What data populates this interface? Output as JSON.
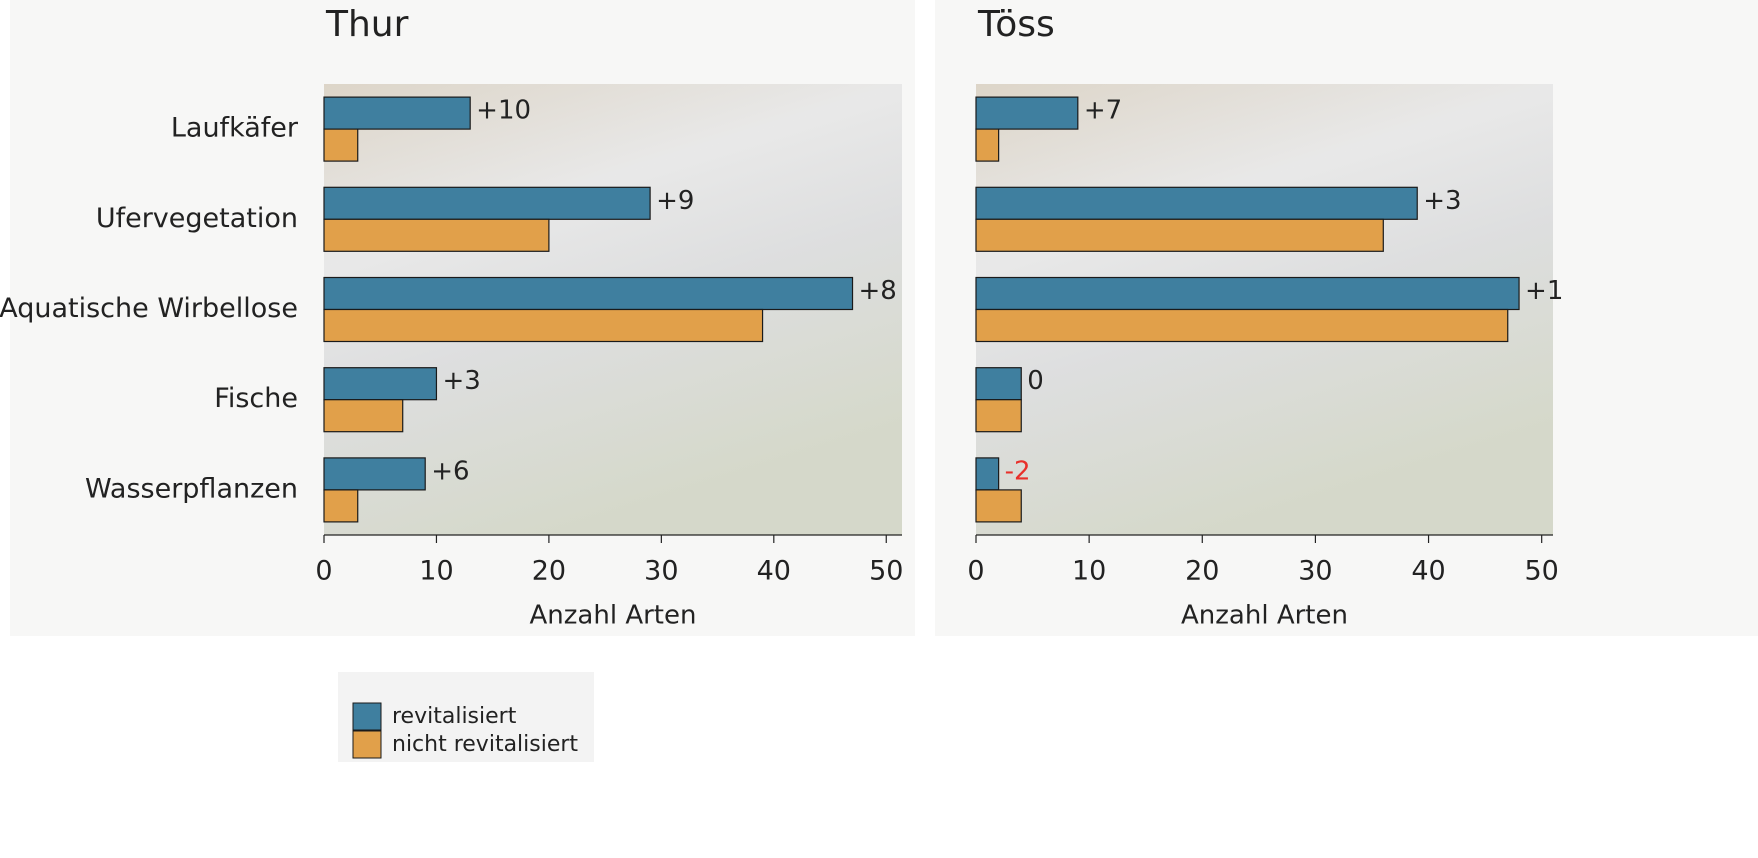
{
  "chart_data": [
    {
      "type": "bar",
      "orientation": "horizontal",
      "title": "Thur",
      "categories": [
        "Laufkäfer",
        "Ufervegetation",
        "Aquatische Wirbellose",
        "Fische",
        "Wasserpflanzen"
      ],
      "series": [
        {
          "name": "revitalisiert",
          "color": "#3f7f9f",
          "values": [
            13,
            29,
            47,
            10,
            9
          ],
          "difference_labels": [
            "+10",
            "+9",
            "+8",
            "+3",
            "+6"
          ],
          "label_colors": [
            "#222222",
            "#222222",
            "#222222",
            "#222222",
            "#222222"
          ]
        },
        {
          "name": "nicht revitalisiert",
          "color": "#e1a04a",
          "values": [
            3,
            20,
            39,
            7,
            3
          ]
        }
      ],
      "xlim": [
        0,
        51.4
      ],
      "xticks": [
        0,
        10,
        20,
        30,
        40,
        50
      ],
      "xlabel": "Anzahl Arten"
    },
    {
      "type": "bar",
      "orientation": "horizontal",
      "title": "Töss",
      "categories": [
        null,
        null,
        null,
        null,
        null
      ],
      "series": [
        {
          "color": "#3f7f9f",
          "values": [
            9,
            39,
            48,
            4,
            2
          ],
          "difference_labels": [
            "+7",
            "+3",
            "+1",
            "0",
            "-2"
          ],
          "label_colors": [
            "#222222",
            "#222222",
            "#222222",
            "#222222",
            "#e8302a"
          ]
        },
        {
          "color": "#e1a04a",
          "values": [
            2,
            36,
            47,
            4,
            4
          ]
        }
      ],
      "xlim": [
        0,
        51
      ],
      "xticks": [
        0,
        10,
        20,
        30,
        40,
        50
      ],
      "xlabel": "Anzahl Arten"
    }
  ]
}
